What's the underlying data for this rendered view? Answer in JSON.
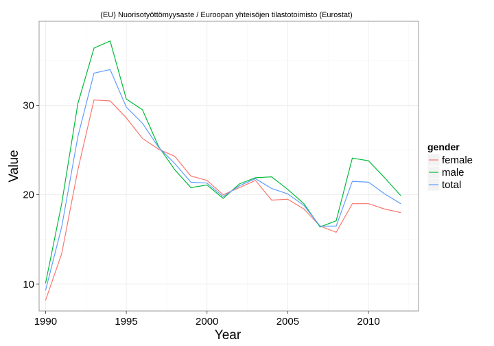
{
  "chart_data": {
    "type": "line",
    "title": "(EU) Nuorisotyöttömyysaste / Euroopan yhteisöjen tilastotoimisto (Eurostat)",
    "xlabel": "Year",
    "ylabel": "Value",
    "xlim": [
      1989.6,
      2013.1
    ],
    "ylim": [
      7,
      39.4
    ],
    "x_ticks": [
      1990,
      1995,
      2000,
      2005,
      2010
    ],
    "y_ticks": [
      10,
      20,
      30
    ],
    "grid": true,
    "legend": {
      "title": "gender",
      "position": "right"
    },
    "x": [
      1990,
      1991,
      1992,
      1993,
      1994,
      1995,
      1996,
      1997,
      1998,
      1999,
      2000,
      2001,
      2002,
      2003,
      2004,
      2005,
      2006,
      2007,
      2008,
      2009,
      2010,
      2011,
      2012
    ],
    "series": [
      {
        "name": "female",
        "color": "#F8766D",
        "values": [
          8.2,
          13.4,
          22.8,
          30.6,
          30.5,
          28.6,
          26.3,
          25.1,
          24.3,
          22.1,
          21.6,
          20.0,
          20.8,
          21.6,
          19.4,
          19.5,
          18.4,
          16.5,
          15.8,
          19.0,
          19.0,
          18.4,
          18.0
        ]
      },
      {
        "name": "male",
        "color": "#00BA38",
        "values": [
          10.1,
          19.0,
          30.2,
          36.4,
          37.2,
          30.7,
          29.5,
          25.4,
          22.8,
          20.8,
          21.1,
          19.6,
          21.2,
          21.9,
          22.0,
          20.6,
          19.0,
          16.4,
          17.1,
          24.1,
          23.8,
          21.9,
          19.9
        ]
      },
      {
        "name": "total",
        "color": "#619CFF",
        "values": [
          9.3,
          16.4,
          26.5,
          33.6,
          34.0,
          29.8,
          28.0,
          25.3,
          23.5,
          21.4,
          21.3,
          19.8,
          21.0,
          21.8,
          20.7,
          20.1,
          18.8,
          16.5,
          16.5,
          21.5,
          21.4,
          20.1,
          19.0
        ]
      }
    ]
  }
}
